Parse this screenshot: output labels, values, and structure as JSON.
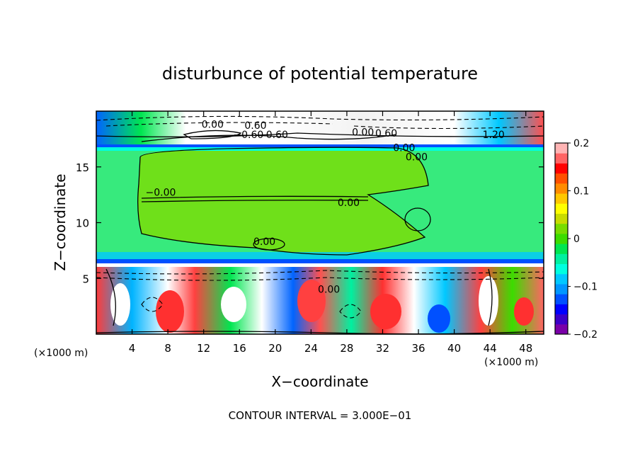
{
  "chart_data": {
    "type": "heatmap",
    "title": "disturbunce of potential temperature",
    "xlabel": "X−coordinate",
    "ylabel": "Z−coordinate",
    "x_unit": "(×1000 m)",
    "z_unit": "(×1000 m)",
    "footer": "CONTOUR INTERVAL = 3.000E−01",
    "x_ticks": [
      4,
      8,
      12,
      16,
      20,
      24,
      28,
      32,
      36,
      40,
      44,
      48
    ],
    "x_tick_labels": [
      "4",
      "8",
      "12",
      "16",
      "20",
      "24",
      "28",
      "32",
      "36",
      "40",
      "44",
      "48"
    ],
    "z_ticks": [
      5,
      10,
      15
    ],
    "z_tick_labels": [
      "5",
      "10",
      "15"
    ],
    "xlim": [
      0,
      50
    ],
    "zlim": [
      0,
      20
    ],
    "colorbar": {
      "ticks": [
        0.2,
        0.1,
        0,
        -0.1,
        -0.2
      ],
      "tick_labels": [
        "0.2",
        "0.1",
        "0",
        "−0.1",
        "−0.2"
      ],
      "range": [
        -0.2,
        0.2
      ],
      "colors": [
        "#7a00a8",
        "#3c00c8",
        "#0000ff",
        "#0050ff",
        "#0096ff",
        "#00c8ff",
        "#00ffe0",
        "#00f0a0",
        "#00e650",
        "#3cdc00",
        "#78dc00",
        "#c8dc00",
        "#ffff00",
        "#ffc800",
        "#ff8c00",
        "#ff5000",
        "#ff0000",
        "#ff6464",
        "#ffb4b4"
      ]
    },
    "contour_labels": [
      {
        "text": "0.00",
        "x": 13.0,
        "z": 18.5
      },
      {
        "text": "0.60",
        "x": 17.8,
        "z": 18.4
      },
      {
        "text": "−0.60",
        "x": 17.0,
        "z": 17.6
      },
      {
        "text": "0.60",
        "x": 20.2,
        "z": 17.6
      },
      {
        "text": "0.00",
        "x": 29.8,
        "z": 17.8
      },
      {
        "text": "0.60",
        "x": 32.4,
        "z": 17.7
      },
      {
        "text": "1.20",
        "x": 44.4,
        "z": 17.6
      },
      {
        "text": "0.00",
        "x": 34.4,
        "z": 16.4
      },
      {
        "text": "0.00",
        "x": 35.8,
        "z": 15.6
      },
      {
        "text": "−0.00",
        "x": 7.2,
        "z": 12.4
      },
      {
        "text": "0.00",
        "x": 28.2,
        "z": 11.5
      },
      {
        "text": "0.00",
        "x": 18.8,
        "z": 8.0
      },
      {
        "text": "0.00",
        "x": 26.0,
        "z": 3.7
      }
    ]
  }
}
